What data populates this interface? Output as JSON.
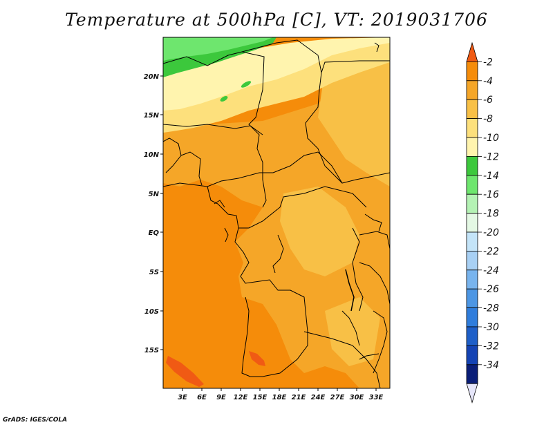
{
  "title": "Temperature at 500hPa [C], VT: 2019031706",
  "credit": "GrADS: IGES/COLA",
  "map": {
    "lon_ticks": [
      "3E",
      "6E",
      "9E",
      "12E",
      "15E",
      "18E",
      "21E",
      "24E",
      "27E",
      "30E",
      "33E"
    ],
    "lat_ticks": [
      "20N",
      "15N",
      "10N",
      "5N",
      "EQ",
      "5S",
      "10S",
      "15S"
    ]
  },
  "colorbar": {
    "labels": [
      "-2",
      "-4",
      "-6",
      "-8",
      "-10",
      "-12",
      "-14",
      "-16",
      "-18",
      "-20",
      "-22",
      "-24",
      "-26",
      "-28",
      "-30",
      "-32",
      "-34"
    ],
    "colors": [
      "#f05a14",
      "#f58c0a",
      "#f5a628",
      "#f8c046",
      "#fde07c",
      "#fff4ae",
      "#3cc83c",
      "#6ee66e",
      "#b4f2b4",
      "#e4f8e4",
      "#c4e4f8",
      "#a8d0f4",
      "#78b4ee",
      "#4c96e4",
      "#2f7ddc",
      "#1e5fc8",
      "#1443b4",
      "#0a1e78",
      "#e6e6fa"
    ]
  },
  "field_colors": {
    "deep_orange": "#f58c0a",
    "orange": "#f5a628",
    "light_orange": "#f8c046",
    "yellow": "#fde07c",
    "pale_yellow": "#fff4ae",
    "green": "#3cc83c",
    "light_green": "#6ee66e",
    "red_orange": "#f05a14"
  }
}
